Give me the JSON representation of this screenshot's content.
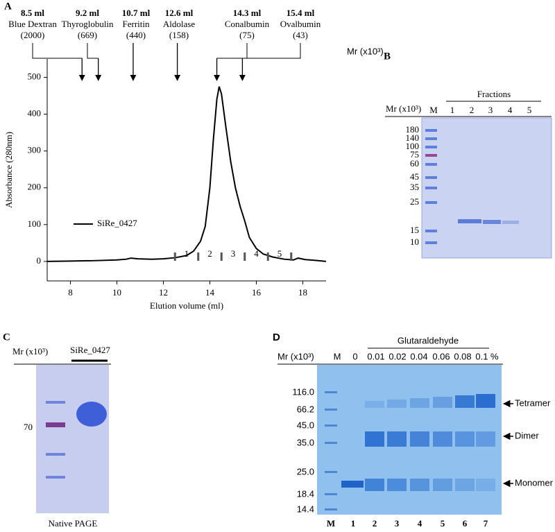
{
  "chart_data": {
    "type": "line",
    "panel": "A",
    "ylabel": "Absorbance (280nm)",
    "xlabel": "Elution volume (ml)",
    "x": [
      7,
      8,
      9,
      10,
      10.4,
      10.6,
      10.9,
      11.5,
      12,
      12.5,
      13,
      13.3,
      13.6,
      13.8,
      14,
      14.15,
      14.3,
      14.4,
      14.5,
      14.7,
      14.9,
      15.1,
      15.3,
      15.5,
      15.7,
      16,
      16.3,
      16.7,
      17.2,
      17.6,
      17.8,
      18.1,
      18.5,
      19
    ],
    "series": [
      {
        "name": "SiRe_0427",
        "color": "#000000",
        "values": [
          0,
          1,
          2,
          4,
          6,
          9,
          7,
          6,
          7,
          10,
          16,
          28,
          55,
          95,
          200,
          330,
          440,
          475,
          455,
          360,
          270,
          200,
          150,
          110,
          65,
          35,
          20,
          12,
          6,
          4,
          9,
          5,
          3,
          0
        ]
      }
    ],
    "xlim": [
      7,
      19
    ],
    "xticks": [
      8,
      10,
      12,
      14,
      16,
      18
    ],
    "ylim": [
      -53,
      550
    ],
    "yticks": [
      0,
      100,
      200,
      300,
      400,
      500
    ],
    "mr_label": "Mr (x10³)",
    "standards": [
      {
        "volume": {
          "value": 8.5,
          "label": "8.5 ml"
        },
        "name": "Blue Dextran",
        "mr": "(2000)"
      },
      {
        "volume": {
          "value": 9.2,
          "label": "9.2 ml"
        },
        "name": "Thyroglobulin",
        "mr": "(669)"
      },
      {
        "volume": {
          "value": 10.7,
          "label": "10.7 ml"
        },
        "name": "Ferritin",
        "mr": "(440)"
      },
      {
        "volume": {
          "value": 12.6,
          "label": "12.6 ml"
        },
        "name": "Aldolase",
        "mr": "(158)"
      },
      {
        "volume": {
          "value": 14.3,
          "label": "14.3 ml"
        },
        "name": "Conalbumin",
        "mr": "(75)"
      },
      {
        "volume": {
          "value": 15.4,
          "label": "15.4 ml"
        },
        "name": "Ovalbumin",
        "mr": "(43)"
      }
    ],
    "fractions": {
      "labels": [
        "1",
        "2",
        "3",
        "4",
        "5"
      ],
      "edges": [
        12.5,
        13.5,
        14.5,
        15.5,
        16.5,
        17.5
      ]
    }
  },
  "panel_b": {
    "letter": "B",
    "header": "Fractions",
    "mr_label": "Mr (x10³)",
    "lanes": [
      "M",
      "1",
      "2",
      "3",
      "4",
      "5"
    ],
    "markers": [
      "180",
      "140",
      "100",
      "75",
      "60",
      "45",
      "35",
      "25",
      "15",
      "10"
    ]
  },
  "panel_c": {
    "letter": "C",
    "mr_label": "Mr (x10³)",
    "sample": "SiRe_0427",
    "markers": [
      "70"
    ],
    "caption": "Native PAGE"
  },
  "panel_d": {
    "letter": "D",
    "header": "Glutaraldehyde",
    "mr_label": "Mr (x10³)",
    "lanes": [
      "M",
      "0",
      "0.01",
      "0.02",
      "0.04",
      "0.06",
      "0.08",
      "0.1 %"
    ],
    "markers": [
      "116.0",
      "66.2",
      "45.0",
      "35.0",
      "25.0",
      "18.4",
      "14.4"
    ],
    "lane_numbers": [
      "M",
      "1",
      "2",
      "3",
      "4",
      "5",
      "6",
      "7"
    ],
    "bands": [
      "Tetramer",
      "Dimer",
      "Monomer"
    ]
  }
}
